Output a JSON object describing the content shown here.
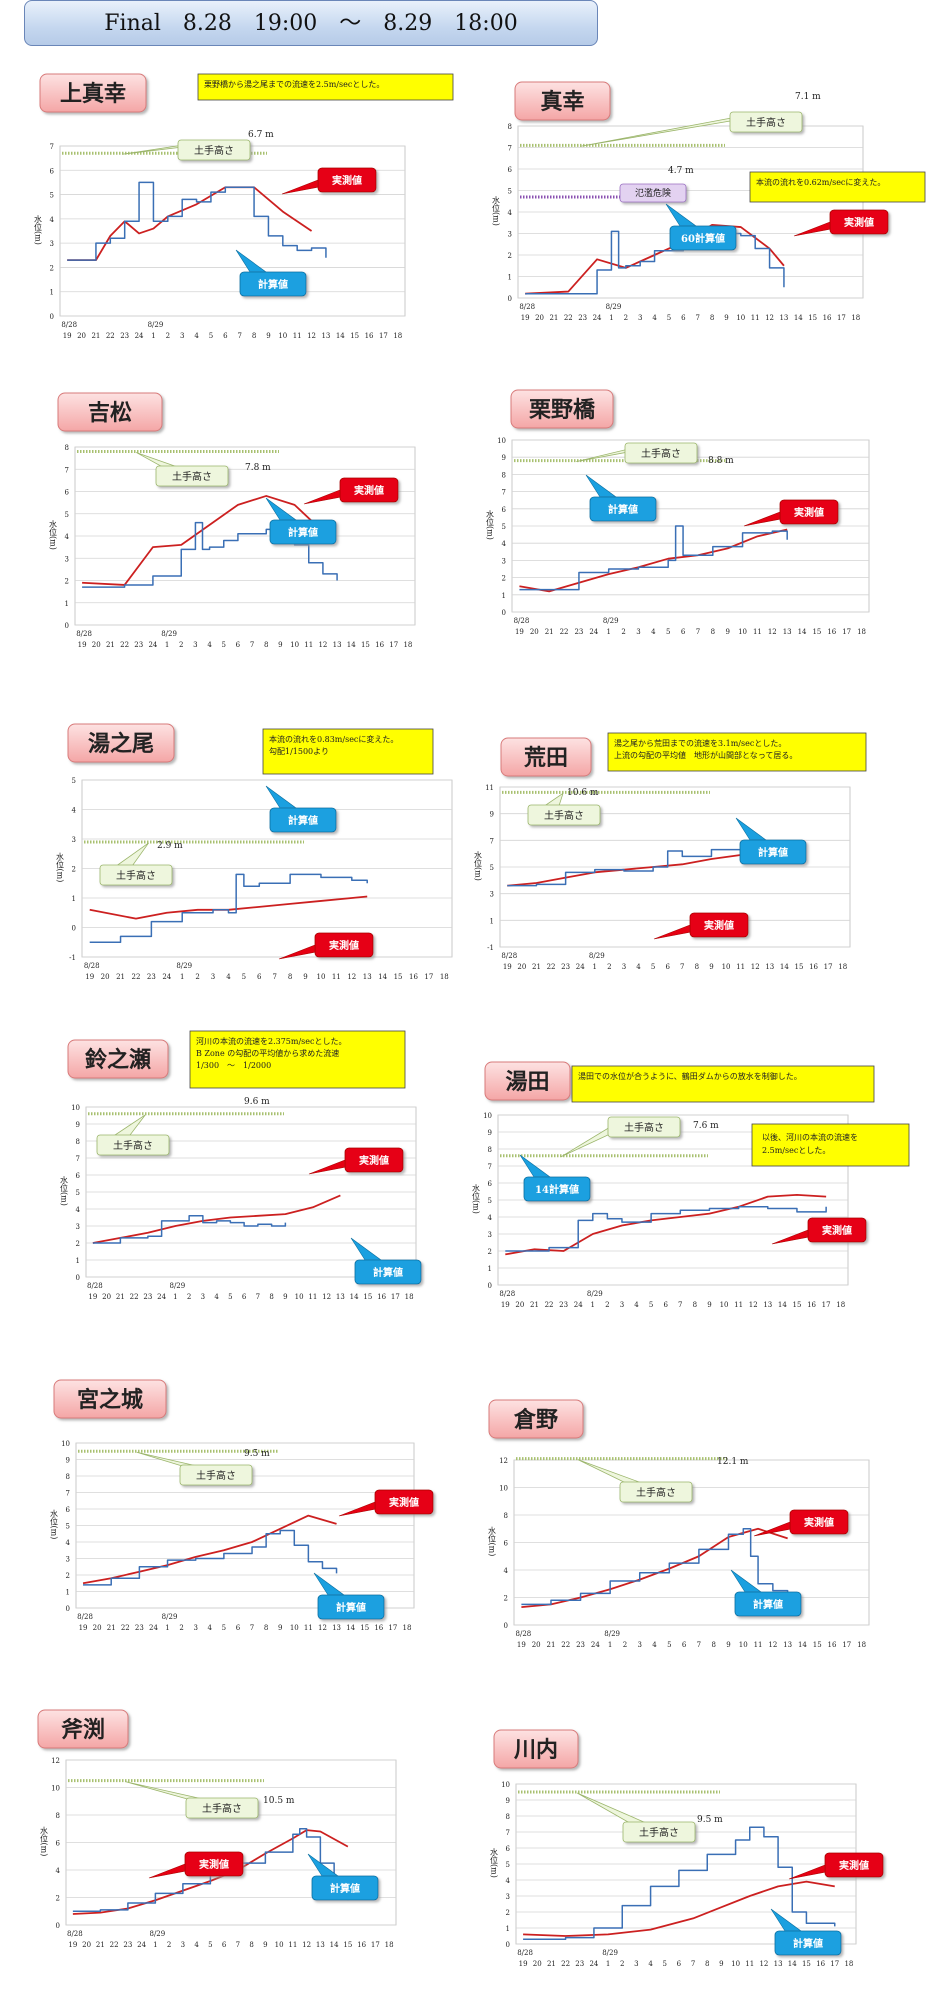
{
  "header": {
    "title": "Final　8.28　19:00　～　8.29　18:00"
  },
  "common": {
    "ylabel": "水位(m)",
    "xticks": [
      "19",
      "20",
      "21",
      "22",
      "23",
      "24",
      "1",
      "2",
      "3",
      "4",
      "5",
      "6",
      "7",
      "8",
      "9",
      "10",
      "11",
      "12",
      "13",
      "14",
      "15",
      "16",
      "17",
      "18"
    ],
    "date1": "8/28",
    "date2": "8/29",
    "colors": {
      "measured": "#cc2020",
      "calculated": "#3a6fb5",
      "levee": "#a8c070",
      "danger": "#8a50b0"
    }
  },
  "chart_data": [
    {
      "type": "line",
      "title": "上真幸",
      "ylim": [
        0,
        7
      ],
      "yticks": [
        0,
        1,
        2,
        3,
        4,
        5,
        6,
        7
      ],
      "levee": {
        "label": "土手高さ",
        "value": "6.7 m",
        "y": 6.7
      },
      "note": "栗野橋から湯之尾までの流速を2.5m/secとした。",
      "series": [
        {
          "name": "実測値",
          "x": [
            0,
            2,
            3,
            4,
            5,
            6,
            7,
            9,
            11,
            13,
            15,
            17
          ],
          "values": [
            2.3,
            2.3,
            3.3,
            3.9,
            3.4,
            3.6,
            4.1,
            4.6,
            5.3,
            5.3,
            4.3,
            3.5
          ]
        },
        {
          "name": "計算値",
          "x": [
            0,
            1,
            2,
            3,
            4,
            5,
            5.5,
            6,
            7,
            8,
            9,
            10,
            11,
            12,
            13,
            14,
            15,
            16,
            17,
            18
          ],
          "values": [
            2.3,
            2.3,
            3.0,
            3.2,
            3.9,
            5.5,
            5.5,
            3.9,
            4.1,
            4.8,
            4.7,
            5.1,
            5.3,
            5.3,
            4.1,
            3.3,
            2.9,
            2.7,
            2.8,
            2.4
          ]
        }
      ]
    },
    {
      "type": "line",
      "title": "真幸",
      "ylim": [
        0,
        8
      ],
      "yticks": [
        0,
        1,
        2,
        3,
        4,
        5,
        6,
        7,
        8
      ],
      "levee": {
        "label": "土手高さ",
        "value": "7.1 m",
        "y": 7.1
      },
      "danger": {
        "label": "氾濫危険",
        "value": "4.7 m",
        "y": 4.7
      },
      "note": "本流の流れを0.62m/secに変えた。",
      "series": [
        {
          "name": "実測値",
          "x": [
            0,
            3,
            5,
            7,
            9,
            11,
            13,
            15,
            17,
            18
          ],
          "values": [
            0.2,
            0.3,
            1.8,
            1.4,
            2.0,
            2.6,
            3.4,
            3.3,
            2.3,
            1.5
          ]
        },
        {
          "name": "60計算値",
          "x": [
            0,
            4,
            5,
            6,
            6.5,
            7,
            8,
            9,
            11,
            13,
            14,
            15,
            16,
            17,
            18
          ],
          "values": [
            0.2,
            0.2,
            1.3,
            3.1,
            1.4,
            1.5,
            1.7,
            2.2,
            2.8,
            3.0,
            3.0,
            2.9,
            2.3,
            1.4,
            0.5
          ]
        }
      ]
    },
    {
      "type": "line",
      "title": "吉松",
      "ylim": [
        0,
        8
      ],
      "yticks": [
        0,
        1,
        2,
        3,
        4,
        5,
        6,
        7,
        8
      ],
      "levee": {
        "label": "土手高さ",
        "value": "7.8 m",
        "y": 7.8
      },
      "series": [
        {
          "name": "実測値",
          "x": [
            0,
            3,
            5,
            7,
            9,
            11,
            13,
            15,
            17
          ],
          "values": [
            1.9,
            1.8,
            3.5,
            3.6,
            4.5,
            5.4,
            5.8,
            5.4,
            4.2
          ]
        },
        {
          "name": "計算値",
          "x": [
            0,
            3,
            5,
            7,
            8,
            8.5,
            9,
            10,
            11,
            13,
            14,
            15,
            16,
            17,
            18
          ],
          "values": [
            1.7,
            1.8,
            2.2,
            3.4,
            4.6,
            3.4,
            3.5,
            3.8,
            4.1,
            4.3,
            4.1,
            3.6,
            2.8,
            2.3,
            2.0
          ]
        }
      ]
    },
    {
      "type": "line",
      "title": "栗野橋",
      "ylim": [
        0,
        10
      ],
      "yticks": [
        0,
        1,
        2,
        3,
        4,
        5,
        6,
        7,
        8,
        9,
        10
      ],
      "levee": {
        "label": "土手高さ",
        "value": "8.8 m",
        "y": 8.8
      },
      "series": [
        {
          "name": "実測値",
          "x": [
            0,
            2,
            4,
            6,
            8,
            10,
            12,
            14,
            16,
            18
          ],
          "values": [
            1.5,
            1.2,
            1.7,
            2.2,
            2.6,
            3.1,
            3.3,
            3.7,
            4.4,
            4.8
          ]
        },
        {
          "name": "計算値",
          "x": [
            0,
            2,
            4,
            6,
            8,
            10,
            10.5,
            11,
            13,
            15,
            17,
            18
          ],
          "values": [
            1.3,
            1.3,
            2.3,
            2.5,
            2.6,
            3.0,
            5.0,
            3.3,
            3.8,
            4.6,
            4.7,
            4.2
          ]
        }
      ]
    },
    {
      "type": "line",
      "title": "湯之尾",
      "ylim": [
        -1,
        5
      ],
      "yticks": [
        -1,
        0,
        1,
        2,
        3,
        4,
        5
      ],
      "levee": {
        "label": "土手高さ",
        "value": "2.9 m",
        "y": 2.9
      },
      "note": "本流の流れを0.83m/secに変えた。\n勾配1/1500より",
      "series": [
        {
          "name": "実測値",
          "x": [
            0,
            3,
            5,
            7,
            9,
            11,
            13,
            15,
            17,
            18
          ],
          "values": [
            0.6,
            0.3,
            0.5,
            0.6,
            0.6,
            0.7,
            0.8,
            0.9,
            1.0,
            1.05
          ]
        },
        {
          "name": "計算値",
          "x": [
            0,
            2,
            4,
            6,
            8,
            9,
            9.5,
            10,
            11,
            13,
            15,
            17,
            18
          ],
          "values": [
            -0.5,
            -0.3,
            0.2,
            0.5,
            0.6,
            0.5,
            1.8,
            1.4,
            1.5,
            1.8,
            1.7,
            1.6,
            1.5
          ]
        }
      ]
    },
    {
      "type": "line",
      "title": "荒田",
      "ylim": [
        -1,
        11
      ],
      "yticks": [
        -1,
        1,
        3,
        5,
        7,
        9,
        11
      ],
      "levee": {
        "label": "土手高さ",
        "value": "10.6 m",
        "y": 10.6
      },
      "note": "湯之尾から荒田までの流速を3.1m/secとした。\n上流の勾配の平均値　地形が山間部となって居る。",
      "series": [
        {
          "name": "実測値",
          "x": [
            0,
            2,
            4,
            6,
            8,
            10,
            12,
            14,
            16,
            18
          ],
          "values": [
            3.6,
            3.8,
            4.2,
            4.6,
            4.8,
            5.0,
            5.2,
            5.6,
            5.9,
            6.0
          ]
        },
        {
          "name": "計算値",
          "x": [
            0,
            2,
            4,
            6,
            8,
            10,
            11,
            12,
            14,
            16,
            18
          ],
          "values": [
            3.6,
            3.7,
            4.6,
            4.8,
            4.7,
            5.0,
            6.2,
            5.8,
            6.3,
            6.1,
            5.7
          ]
        }
      ]
    },
    {
      "type": "line",
      "title": "鈴之瀬",
      "ylim": [
        0,
        10
      ],
      "yticks": [
        0,
        1,
        2,
        3,
        4,
        5,
        6,
        7,
        8,
        9,
        10
      ],
      "levee": {
        "label": "土手高さ",
        "value": "9.6 m",
        "y": 9.6
      },
      "note": "河川の本流の流速を2.375m/secとした。\nB Zone の勾配の平均値から求めた流速\n1/300　～　1/2000",
      "series": [
        {
          "name": "実測値",
          "x": [
            0,
            2,
            4,
            6,
            8,
            10,
            12,
            14,
            16,
            18
          ],
          "values": [
            2.0,
            2.3,
            2.6,
            3.0,
            3.3,
            3.5,
            3.6,
            3.7,
            4.1,
            4.8
          ]
        },
        {
          "name": "計算値",
          "x": [
            0,
            2,
            4,
            5,
            6,
            7,
            8,
            9,
            10,
            11,
            12,
            13,
            14
          ],
          "values": [
            2.0,
            2.3,
            2.4,
            3.3,
            3.3,
            3.6,
            3.2,
            3.3,
            3.2,
            3.0,
            3.1,
            3.0,
            3.2
          ]
        }
      ]
    },
    {
      "type": "line",
      "title": "湯田",
      "ylim": [
        0,
        10
      ],
      "yticks": [
        0,
        1,
        2,
        3,
        4,
        5,
        6,
        7,
        8,
        9,
        10
      ],
      "levee": {
        "label": "土手高さ",
        "value": "7.6 m",
        "y": 7.6
      },
      "note": "湯田での水位が合うように、鶴田ダムからの放水を制御した。",
      "note2": "以後、河川の本流の流速を\n2.5m/secとした。",
      "series": [
        {
          "name": "実測値",
          "x": [
            0,
            2,
            4,
            6,
            8,
            10,
            12,
            14,
            16,
            18,
            20,
            22
          ],
          "values": [
            1.8,
            2.1,
            2.0,
            3.0,
            3.5,
            3.8,
            4.0,
            4.2,
            4.6,
            5.2,
            5.3,
            5.2
          ]
        },
        {
          "name": "14計算値",
          "x": [
            0,
            3,
            5,
            6,
            7,
            8,
            10,
            12,
            14,
            16,
            18,
            20,
            22
          ],
          "values": [
            2.0,
            2.2,
            3.8,
            4.2,
            3.9,
            3.7,
            4.2,
            4.4,
            4.5,
            4.6,
            4.5,
            4.3,
            4.6
          ]
        }
      ]
    },
    {
      "type": "line",
      "title": "宮之城",
      "ylim": [
        0,
        10
      ],
      "yticks": [
        0,
        1,
        2,
        3,
        4,
        5,
        6,
        7,
        8,
        9,
        10
      ],
      "levee": {
        "label": "土手高さ",
        "value": "9.5 m",
        "y": 9.5
      },
      "series": [
        {
          "name": "実測値",
          "x": [
            0,
            2,
            4,
            6,
            8,
            10,
            12,
            14,
            16,
            18
          ],
          "values": [
            1.5,
            1.8,
            2.2,
            2.6,
            3.1,
            3.5,
            4.0,
            4.8,
            5.6,
            5.1
          ]
        },
        {
          "name": "計算値",
          "x": [
            0,
            2,
            4,
            6,
            8,
            10,
            12,
            13,
            14,
            15,
            16,
            17,
            18
          ],
          "values": [
            1.4,
            1.8,
            2.5,
            2.9,
            3.0,
            3.3,
            3.7,
            4.5,
            4.7,
            3.8,
            2.8,
            2.4,
            2.1
          ]
        }
      ]
    },
    {
      "type": "line",
      "title": "倉野",
      "ylim": [
        0,
        12
      ],
      "yticks": [
        0,
        2,
        4,
        6,
        8,
        10,
        12
      ],
      "levee": {
        "label": "土手高さ",
        "value": "12.1 m",
        "y": 12.1
      },
      "series": [
        {
          "name": "実測値",
          "x": [
            0,
            2,
            4,
            6,
            8,
            10,
            12,
            14,
            16,
            18
          ],
          "values": [
            1.3,
            1.5,
            2.0,
            2.6,
            3.3,
            4.1,
            5.0,
            6.4,
            7.0,
            6.3
          ]
        },
        {
          "name": "計算値",
          "x": [
            0,
            2,
            4,
            6,
            8,
            10,
            12,
            14,
            15,
            15.5,
            16,
            17,
            18
          ],
          "values": [
            1.5,
            1.8,
            2.3,
            3.2,
            3.8,
            4.5,
            5.5,
            6.6,
            7.0,
            5.0,
            3.0,
            2.5,
            2.3
          ]
        }
      ]
    },
    {
      "type": "line",
      "title": "斧渕",
      "ylim": [
        0,
        12
      ],
      "yticks": [
        0,
        2,
        4,
        6,
        8,
        10,
        12
      ],
      "levee": {
        "label": "土手高さ",
        "value": "10.5 m",
        "y": 10.5
      },
      "series": [
        {
          "name": "実測値",
          "x": [
            0,
            2,
            4,
            6,
            8,
            10,
            12,
            14,
            16,
            17,
            18,
            20
          ],
          "values": [
            0.8,
            0.9,
            1.2,
            1.8,
            2.5,
            3.2,
            4.0,
            5.2,
            6.3,
            6.9,
            6.8,
            5.7
          ]
        },
        {
          "name": "計算値",
          "x": [
            0,
            2,
            4,
            6,
            8,
            10,
            12,
            14,
            16,
            16.5,
            17,
            18,
            19,
            20
          ],
          "values": [
            1.0,
            1.1,
            1.6,
            2.3,
            3.0,
            3.8,
            4.5,
            5.3,
            6.6,
            7.0,
            6.4,
            4.5,
            2.8,
            1.8
          ]
        }
      ]
    },
    {
      "type": "line",
      "title": "川内",
      "ylim": [
        0,
        10
      ],
      "yticks": [
        0,
        1,
        2,
        3,
        4,
        5,
        6,
        7,
        8,
        9,
        10
      ],
      "levee": {
        "label": "土手高さ",
        "value": "9.5 m",
        "y": 9.5
      },
      "series": [
        {
          "name": "実測値",
          "x": [
            0,
            3,
            6,
            9,
            12,
            14,
            16,
            18,
            20,
            22
          ],
          "values": [
            0.6,
            0.5,
            0.6,
            0.9,
            1.6,
            2.3,
            3.0,
            3.6,
            3.9,
            3.6
          ]
        },
        {
          "name": "計算値",
          "x": [
            0,
            3,
            5,
            7,
            9,
            11,
            13,
            15,
            16,
            17,
            18,
            19,
            20,
            22
          ],
          "values": [
            0.3,
            0.4,
            1.0,
            2.4,
            3.6,
            4.6,
            5.6,
            6.5,
            7.3,
            6.7,
            4.8,
            2.0,
            1.3,
            1.1
          ]
        }
      ]
    }
  ]
}
